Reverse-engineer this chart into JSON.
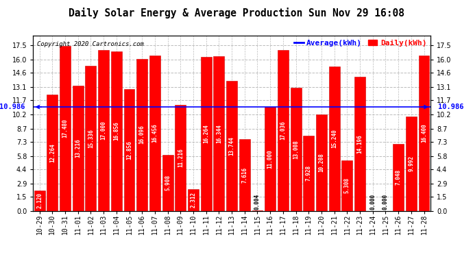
{
  "title": "Daily Solar Energy & Average Production Sun Nov 29 16:08",
  "copyright": "Copyright 2020 Cartronics.com",
  "average_label": "Average(kWh)",
  "daily_label": "Daily(kWh)",
  "average_value": 10.986,
  "categories": [
    "10-29",
    "10-30",
    "10-31",
    "11-01",
    "11-02",
    "11-03",
    "11-04",
    "11-05",
    "11-06",
    "11-07",
    "11-08",
    "11-09",
    "11-10",
    "11-11",
    "11-12",
    "11-13",
    "11-14",
    "11-15",
    "11-16",
    "11-17",
    "11-18",
    "11-19",
    "11-20",
    "11-21",
    "11-22",
    "11-23",
    "11-24",
    "11-25",
    "11-26",
    "11-27",
    "11-28"
  ],
  "values": [
    2.12,
    12.264,
    17.48,
    13.216,
    15.336,
    17.0,
    16.856,
    12.856,
    16.096,
    16.456,
    5.908,
    11.216,
    2.312,
    16.264,
    16.344,
    13.744,
    7.616,
    0.004,
    11.0,
    17.036,
    13.008,
    7.928,
    10.208,
    15.24,
    5.308,
    14.196,
    0.0,
    0.0,
    7.048,
    9.992,
    16.4
  ],
  "bar_color": "#ff0000",
  "bar_edge_color": "#cc0000",
  "avg_line_color": "#0000ff",
  "daily_label_color": "#ff0000",
  "title_color": "#000000",
  "background_color": "#ffffff",
  "yticks": [
    0.0,
    1.5,
    2.9,
    4.4,
    5.8,
    7.3,
    8.7,
    10.2,
    11.7,
    13.1,
    14.6,
    16.0,
    17.5
  ],
  "ylim": [
    0.0,
    18.5
  ],
  "grid_color": "#bbbbbb",
  "value_fontsize": 5.5,
  "avg_fontsize": 7.5,
  "title_fontsize": 10.5,
  "copyright_fontsize": 6.5,
  "tick_fontsize": 7.0,
  "legend_fontsize": 8.0
}
